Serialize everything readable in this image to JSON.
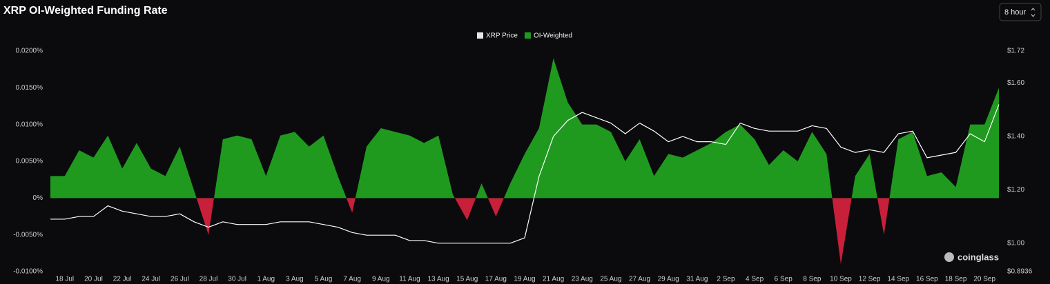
{
  "chart_data": {
    "type": "area-line",
    "title": "XRP OI-Weighted Funding Rate",
    "categories": [
      null,
      "18 Jul",
      null,
      "20 Jul",
      null,
      "22 Jul",
      null,
      "24 Jul",
      null,
      "26 Jul",
      null,
      "28 Jul",
      null,
      "30 Jul",
      null,
      "1 Aug",
      null,
      "3 Aug",
      null,
      "5 Aug",
      null,
      "7 Aug",
      null,
      "9 Aug",
      null,
      "11 Aug",
      null,
      "13 Aug",
      null,
      "15 Aug",
      null,
      "17 Aug",
      null,
      "19 Aug",
      null,
      "21 Aug",
      null,
      "23 Aug",
      null,
      "25 Aug",
      null,
      "27 Aug",
      null,
      "29 Aug",
      null,
      "31 Aug",
      null,
      "2 Sep",
      null,
      "4 Sep",
      null,
      "6 Sep",
      null,
      "8 Sep",
      null,
      "10 Sep",
      null,
      "12 Sep",
      null,
      "14 Sep",
      null,
      "16 Sep",
      null,
      "18 Sep",
      null,
      "20 Sep",
      null
    ],
    "series": [
      {
        "name": "XRP Price",
        "color": "#ffffff",
        "axis": "y2",
        "values": [
          1.09,
          1.09,
          1.1,
          1.1,
          1.14,
          1.12,
          1.11,
          1.1,
          1.1,
          1.11,
          1.08,
          1.06,
          1.08,
          1.07,
          1.07,
          1.07,
          1.08,
          1.08,
          1.08,
          1.07,
          1.06,
          1.04,
          1.03,
          1.03,
          1.03,
          1.01,
          1.01,
          1.0,
          1.0,
          1.0,
          1.0,
          1.0,
          1.0,
          1.02,
          1.25,
          1.4,
          1.46,
          1.49,
          1.47,
          1.45,
          1.41,
          1.45,
          1.42,
          1.38,
          1.4,
          1.38,
          1.38,
          1.37,
          1.45,
          1.43,
          1.42,
          1.42,
          1.42,
          1.44,
          1.43,
          1.36,
          1.34,
          1.35,
          1.34,
          1.41,
          1.42,
          1.32,
          1.33,
          1.34,
          1.41,
          1.38,
          1.52
        ]
      },
      {
        "name": "OI-Weighted",
        "color": "#1f9a1f",
        "negative_color": "#c8203a",
        "values": [
          0.003,
          0.003,
          0.0065,
          0.0055,
          0.0085,
          0.004,
          0.0075,
          0.004,
          0.003,
          0.007,
          0.001,
          -0.005,
          0.008,
          0.0085,
          0.008,
          0.003,
          0.0085,
          0.009,
          0.007,
          0.0085,
          0.003,
          -0.002,
          0.007,
          0.0095,
          0.009,
          0.0085,
          0.0075,
          0.0085,
          0.0005,
          -0.003,
          0.002,
          -0.0025,
          0.002,
          0.006,
          0.0095,
          0.019,
          0.013,
          0.01,
          0.01,
          0.009,
          0.005,
          0.008,
          0.003,
          0.006,
          0.0055,
          0.0065,
          0.0075,
          0.009,
          0.01,
          0.008,
          0.0045,
          0.0065,
          0.005,
          0.009,
          0.006,
          -0.009,
          0.003,
          0.006,
          -0.005,
          0.008,
          0.009,
          0.003,
          0.0035,
          0.0015,
          0.01,
          0.01,
          0.015
        ]
      }
    ],
    "ylim": [
      -0.01,
      0.02
    ],
    "yticks": [
      {
        "value": 0.02,
        "label": "0.0200%"
      },
      {
        "value": 0.015,
        "label": "0.0150%"
      },
      {
        "value": 0.01,
        "label": "0.0100%"
      },
      {
        "value": 0.005,
        "label": "0.0050%"
      },
      {
        "value": 0,
        "label": "0%"
      },
      {
        "value": -0.005,
        "label": "-0.0050%"
      },
      {
        "value": -0.01,
        "label": "-0.0100%"
      }
    ],
    "y2lim": [
      0.8936,
      1.72
    ],
    "y2ticks": [
      {
        "value": 1.72,
        "label": "$1.72"
      },
      {
        "value": 1.6,
        "label": "$1.60"
      },
      {
        "value": 1.4,
        "label": "$1.40"
      },
      {
        "value": 1.2,
        "label": "$1.20"
      },
      {
        "value": 1.0,
        "label": "$1.00"
      },
      {
        "value": 0.8936,
        "label": "$0.8936"
      }
    ],
    "grid": false,
    "legend": "top"
  },
  "interval_selector": "8 hour",
  "watermark": "coinglass"
}
